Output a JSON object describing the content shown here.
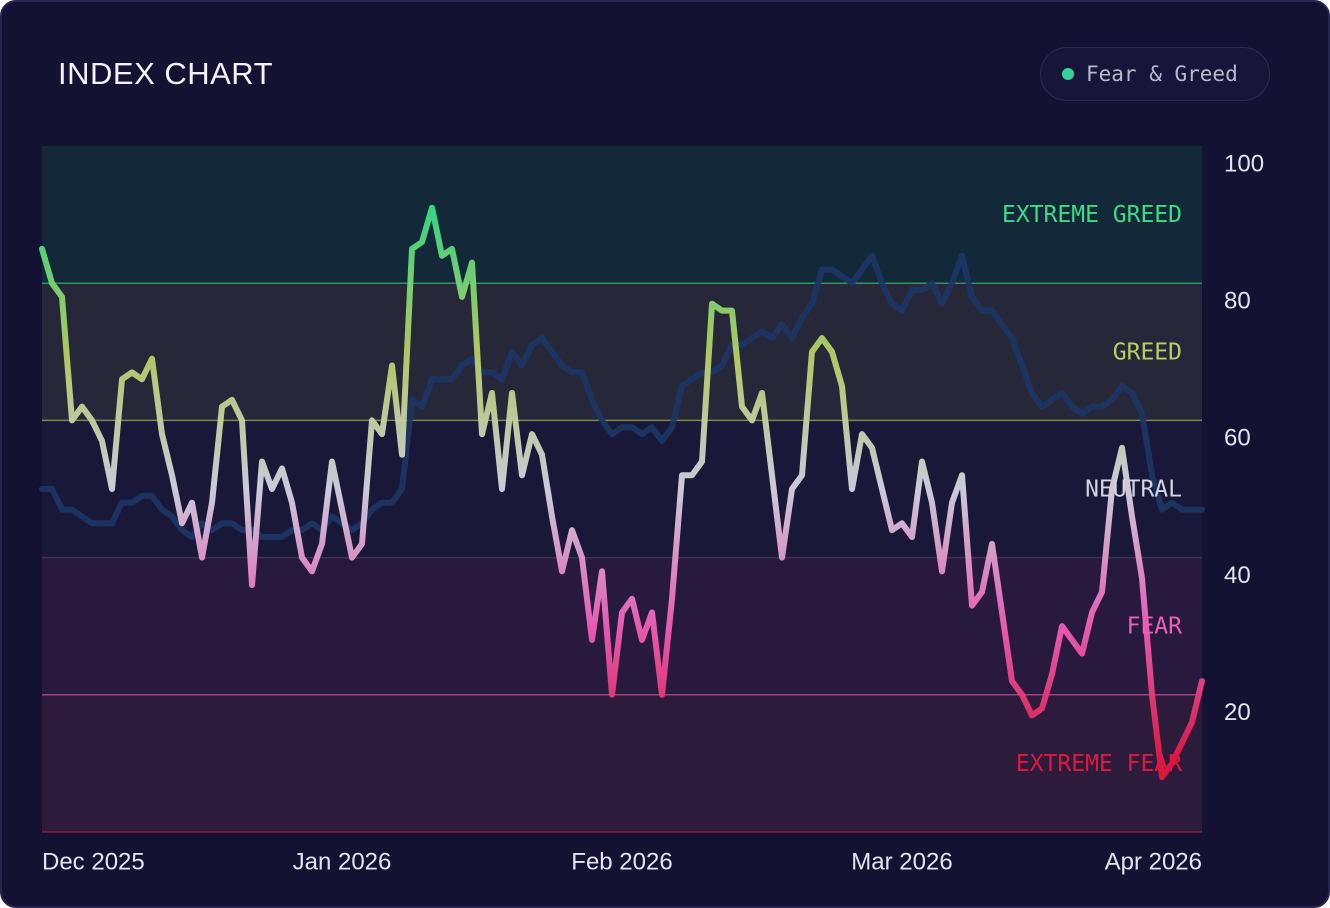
{
  "chart_data": {
    "type": "line",
    "title": "INDEX CHART",
    "ylim": [
      0,
      100
    ],
    "yticks": [
      20,
      40,
      60,
      80,
      100
    ],
    "xticks": [
      "Dec 2025",
      "Jan 2026",
      "Feb 2026",
      "Mar 2026",
      "Apr 2026"
    ],
    "bands": [
      {
        "label": "EXTREME GREED",
        "from": 80,
        "to": 100,
        "color": "#3ddc84",
        "fill": "#13293a"
      },
      {
        "label": "GREED",
        "from": 60,
        "to": 80,
        "color": "#b7cf63",
        "fill": "#26283a"
      },
      {
        "label": "NEUTRAL",
        "from": 40,
        "to": 60,
        "color": "#d4d4e2",
        "fill": "#1a1838"
      },
      {
        "label": "FEAR",
        "from": 20,
        "to": 40,
        "color": "#ee5fb8",
        "fill": "#28193f"
      },
      {
        "label": "EXTREME FEAR",
        "from": 0,
        "to": 20,
        "color": "#e0183f",
        "fill": "#2d1b3b"
      }
    ],
    "series": [
      {
        "color": "#1d3566",
        "values": [
          50,
          50,
          47,
          47,
          46,
          45,
          45,
          45,
          48,
          48,
          49,
          49,
          47,
          46,
          44,
          43,
          45,
          44,
          45,
          45,
          44,
          44,
          43,
          43,
          43,
          44,
          44,
          45,
          44,
          46,
          45,
          44,
          45,
          47,
          48,
          48,
          50,
          63,
          62,
          66,
          66,
          66,
          68,
          69,
          67,
          67,
          66,
          70,
          68,
          71,
          72,
          70,
          68,
          67,
          67,
          63,
          60,
          58,
          59,
          59,
          58,
          59,
          57,
          59,
          65,
          66,
          67,
          67,
          68,
          71,
          71,
          72,
          73,
          72,
          74,
          72,
          75,
          77,
          82,
          82,
          81,
          80,
          82,
          84,
          80,
          77,
          76,
          79,
          79,
          80,
          77,
          80,
          84,
          78,
          76,
          76,
          74,
          72,
          68,
          64,
          62,
          63,
          64,
          62,
          61,
          62,
          62,
          63,
          65,
          64,
          61,
          52,
          47,
          48,
          47,
          47,
          47
        ]
      },
      {
        "name": "Fear & Greed",
        "color": "#34d399",
        "values": [
          85,
          80,
          78,
          60,
          62,
          60,
          57,
          50,
          66,
          67,
          66,
          69,
          58,
          52,
          45,
          48,
          40,
          48,
          62,
          63,
          60,
          36,
          54,
          50,
          53,
          48,
          40,
          38,
          42,
          54,
          47,
          40,
          42,
          60,
          58,
          68,
          55,
          85,
          86,
          91,
          84,
          85,
          78,
          83,
          58,
          64,
          50,
          64,
          52,
          58,
          55,
          46,
          38,
          44,
          40,
          28,
          38,
          20,
          32,
          34,
          28,
          32,
          20,
          34,
          52,
          52,
          54,
          77,
          76,
          76,
          62,
          60,
          64,
          52,
          40,
          50,
          52,
          70,
          72,
          70,
          65,
          50,
          58,
          56,
          50,
          44,
          45,
          43,
          54,
          48,
          38,
          48,
          52,
          33,
          35,
          42,
          32,
          22,
          20,
          17,
          18,
          23,
          30,
          28,
          26,
          32,
          35,
          50,
          56,
          46,
          37,
          20,
          8,
          10,
          13,
          16,
          22
        ]
      }
    ]
  }
}
